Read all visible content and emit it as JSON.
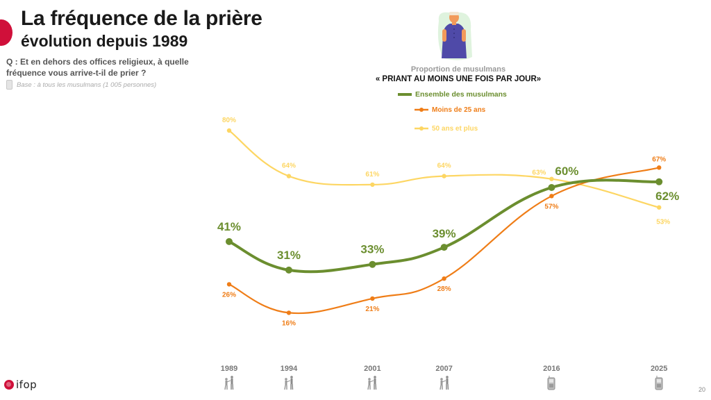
{
  "header": {
    "title_line1": "La fréquence de la prière",
    "title_line2": "évolution depuis 1989",
    "question": "Q : Et en dehors des offices religieux, à quelle fréquence vous arrive-t-il de prier ?",
    "base": "Base : à tous les musulmans (1 005 personnes)"
  },
  "colors": {
    "brand_red": "#d0103a",
    "ensemble": "#6b8e2f",
    "moins25": "#ef7d17",
    "plus50": "#fdd663"
  },
  "footer": {
    "logo_text": "ifop",
    "page_number": "20"
  },
  "chart_data": {
    "type": "line",
    "subtitle": "Proportion de musulmans",
    "title": "« PRIANT AU MOINS UNE FOIS PAR JOUR»",
    "xlabel": "",
    "ylabel": "",
    "x": [
      "1989",
      "1994",
      "2001",
      "2007",
      "2016",
      "2025"
    ],
    "x_numeric": [
      1989,
      1994,
      2001,
      2007,
      2016,
      2025
    ],
    "survey_mode_icons": [
      "face-to-face-icon",
      "face-to-face-icon",
      "face-to-face-icon",
      "face-to-face-icon",
      "phone-icon",
      "phone-icon"
    ],
    "ylim": [
      0,
      100
    ],
    "grid": false,
    "legend_position": "top-center",
    "series": [
      {
        "name": "Ensemble des musulmans",
        "color": "#6b8e2f",
        "values": [
          41,
          31,
          33,
          39,
          60,
          62
        ],
        "labels": [
          "41%",
          "31%",
          "33%",
          "39%",
          "60%",
          "62%"
        ]
      },
      {
        "name": "Moins de 25 ans",
        "color": "#ef7d17",
        "values": [
          26,
          16,
          21,
          28,
          57,
          67
        ],
        "labels": [
          "26%",
          "16%",
          "21%",
          "28%",
          "57%",
          "67%"
        ]
      },
      {
        "name": "50 ans et plus",
        "color": "#fdd663",
        "values": [
          80,
          64,
          61,
          64,
          63,
          53
        ],
        "labels": [
          "80%",
          "64%",
          "61%",
          "64%",
          "63%",
          "53%"
        ]
      }
    ]
  }
}
